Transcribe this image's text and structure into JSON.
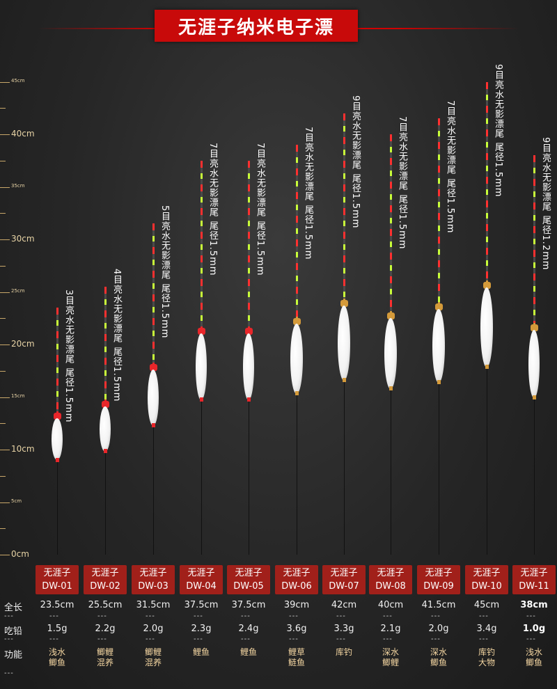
{
  "title": "无涯子纳米电子漂",
  "ruler_labels": [
    {
      "cm": 0,
      "text": "0cm",
      "major": true
    },
    {
      "cm": 5,
      "text": "5cm",
      "major": false
    },
    {
      "cm": 10,
      "text": "10cm",
      "major": true
    },
    {
      "cm": 15,
      "text": "15cm",
      "major": false
    },
    {
      "cm": 20,
      "text": "20cm",
      "major": true
    },
    {
      "cm": 25,
      "text": "25cm",
      "major": false
    },
    {
      "cm": 30,
      "text": "30cm",
      "major": true
    },
    {
      "cm": 35,
      "text": "35cm",
      "major": false
    },
    {
      "cm": 40,
      "text": "40cm",
      "major": true
    },
    {
      "cm": 45,
      "text": "45cm",
      "major": false
    }
  ],
  "row_labels": {
    "length": "全长",
    "weight": "吃铅",
    "function": "功能",
    "dash": "---"
  },
  "floats": [
    {
      "brand": "无涯子",
      "model": "DW-01",
      "length_cm": 23.5,
      "length": "23.5cm",
      "weight": "1.5g",
      "function": [
        "浅水",
        "鲫鱼"
      ],
      "desc": "3目亮水无影漂尾 尾径1.5mm",
      "accent": "#e8262a",
      "highlight": false
    },
    {
      "brand": "无涯子",
      "model": "DW-02",
      "length_cm": 25.5,
      "length": "25.5cm",
      "weight": "2.2g",
      "function": [
        "鲫鲤",
        "混养"
      ],
      "desc": "4目亮水无影漂尾 尾径1.5mm",
      "accent": "#e8262a",
      "highlight": false
    },
    {
      "brand": "无涯子",
      "model": "DW-03",
      "length_cm": 31.5,
      "length": "31.5cm",
      "weight": "2.0g",
      "function": [
        "鲫鲤",
        "混养"
      ],
      "desc": "5目亮水无影漂尾 尾径1.5mm",
      "accent": "#e8262a",
      "highlight": false
    },
    {
      "brand": "无涯子",
      "model": "DW-04",
      "length_cm": 37.5,
      "length": "37.5cm",
      "weight": "2.3g",
      "function": [
        "鲤鱼"
      ],
      "desc": "7目亮水无影漂尾 尾径1.5mm",
      "accent": "#e8262a",
      "highlight": false
    },
    {
      "brand": "无涯子",
      "model": "DW-05",
      "length_cm": 37.5,
      "length": "37.5cm",
      "weight": "2.4g",
      "function": [
        "鲤鱼"
      ],
      "desc": "7目亮水无影漂尾 尾径1.5mm",
      "accent": "#e8262a",
      "highlight": false
    },
    {
      "brand": "无涯子",
      "model": "DW-06",
      "length_cm": 39,
      "length": "39cm",
      "weight": "3.6g",
      "function": [
        "鲤草",
        "鲢鱼"
      ],
      "desc": "7目亮水无影漂尾 尾径1.5mm",
      "accent": "#d49a3a",
      "highlight": false
    },
    {
      "brand": "无涯子",
      "model": "DW-07",
      "length_cm": 42,
      "length": "42cm",
      "weight": "3.3g",
      "function": [
        "库钓"
      ],
      "desc": "9目亮水无影漂尾 尾径1.5mm",
      "accent": "#d49a3a",
      "highlight": false
    },
    {
      "brand": "无涯子",
      "model": "DW-08",
      "length_cm": 40,
      "length": "40cm",
      "weight": "2.1g",
      "function": [
        "深水",
        "鲫鲤"
      ],
      "desc": "7目亮水无影漂尾 尾径1.5mm",
      "accent": "#d49a3a",
      "highlight": false
    },
    {
      "brand": "无涯子",
      "model": "DW-09",
      "length_cm": 41.5,
      "length": "41.5cm",
      "weight": "2.0g",
      "function": [
        "深水",
        "鲫鱼"
      ],
      "desc": "7目亮水无影漂尾 尾径1.5mm",
      "accent": "#d49a3a",
      "highlight": false
    },
    {
      "brand": "无涯子",
      "model": "DW-10",
      "length_cm": 45,
      "length": "45cm",
      "weight": "3.4g",
      "function": [
        "库钓",
        "大物"
      ],
      "desc": "9目亮水无影漂尾 尾径1.5mm",
      "accent": "#d49a3a",
      "highlight": false
    },
    {
      "brand": "无涯子",
      "model": "DW-11",
      "length_cm": 38,
      "length": "38cm",
      "weight": "1.0g",
      "function": [
        "浅水",
        "鲫鱼"
      ],
      "desc": "9目亮水无影漂尾 尾径1.2mm",
      "accent": "#d49a3a",
      "highlight": true
    }
  ]
}
